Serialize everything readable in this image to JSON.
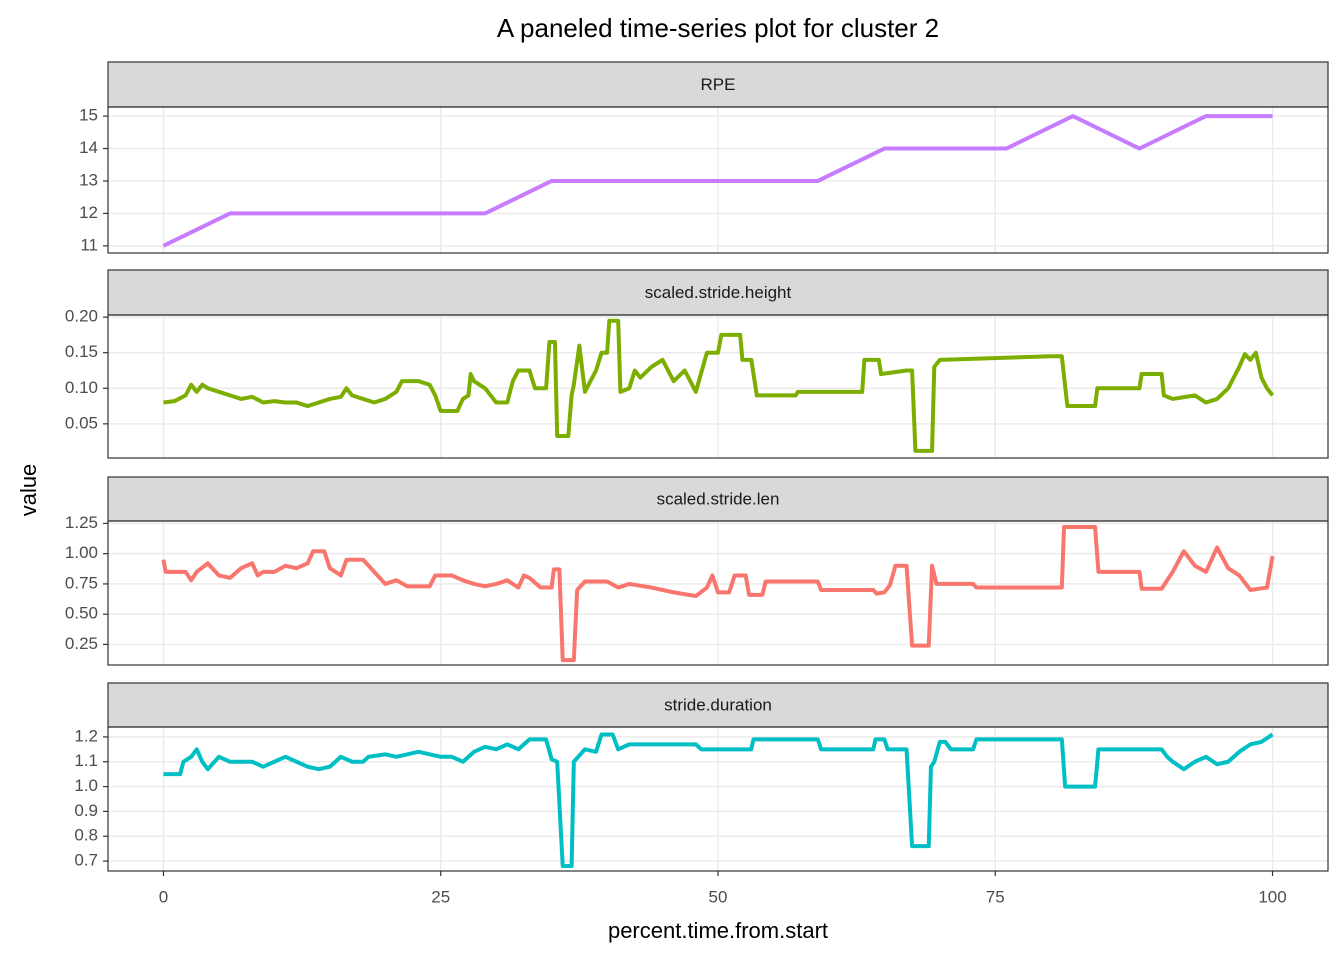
{
  "title": "A paneled time-series plot for cluster 2",
  "x_label": "percent.time.from.start",
  "y_label": "value",
  "xlim": [
    -5,
    105
  ],
  "xticks": [
    0,
    25,
    50,
    75,
    100
  ],
  "grid": true,
  "chart_data": [
    {
      "type": "line",
      "facet": "RPE",
      "color": "#C77CFF",
      "x": [
        0,
        6,
        29,
        35,
        59,
        65,
        76,
        82,
        88,
        94,
        100
      ],
      "values": [
        11,
        12,
        12,
        13,
        13,
        14,
        14,
        15,
        14,
        15,
        15
      ],
      "ylim": [
        10.78,
        15.28
      ],
      "yticks": [
        11,
        12,
        13,
        14,
        15
      ]
    },
    {
      "type": "line",
      "facet": "scaled.stride.height",
      "color": "#7CAE00",
      "x": [
        0,
        1,
        2,
        2.5,
        3,
        3.5,
        4,
        5,
        6,
        7,
        8,
        9,
        10,
        11,
        12,
        13,
        14,
        15,
        16,
        16.5,
        17,
        18,
        19,
        20,
        21,
        21.5,
        23,
        24,
        24.5,
        25,
        26.5,
        27,
        27.5,
        27.7,
        28,
        29,
        30,
        31,
        31.5,
        32,
        33,
        33.5,
        34.5,
        34.8,
        35.3,
        35.5,
        36.5,
        36.8,
        37,
        37.5,
        38,
        39,
        39.5,
        40,
        40.2,
        41,
        41.2,
        42,
        42.5,
        43,
        44,
        45,
        45.5,
        46,
        47,
        48,
        49,
        50,
        50.3,
        52,
        52.2,
        53,
        53.5,
        57,
        57.2,
        63,
        63.2,
        64.5,
        64.7,
        67,
        67.5,
        67.8,
        69.3,
        69.5,
        70,
        80,
        81,
        81.5,
        84,
        84.2,
        88,
        88.2,
        90,
        90.2,
        91,
        93,
        94,
        95,
        96,
        97,
        97.5,
        98,
        98.5,
        99,
        99.5,
        100
      ],
      "values": [
        0.08,
        0.082,
        0.09,
        0.105,
        0.095,
        0.105,
        0.1,
        0.095,
        0.09,
        0.085,
        0.088,
        0.08,
        0.082,
        0.08,
        0.08,
        0.075,
        0.08,
        0.085,
        0.088,
        0.1,
        0.09,
        0.085,
        0.08,
        0.085,
        0.095,
        0.11,
        0.11,
        0.105,
        0.09,
        0.068,
        0.068,
        0.085,
        0.09,
        0.12,
        0.11,
        0.1,
        0.08,
        0.08,
        0.11,
        0.125,
        0.125,
        0.1,
        0.1,
        0.165,
        0.165,
        0.033,
        0.033,
        0.09,
        0.105,
        0.16,
        0.095,
        0.125,
        0.15,
        0.15,
        0.195,
        0.195,
        0.095,
        0.1,
        0.125,
        0.115,
        0.13,
        0.14,
        0.125,
        0.11,
        0.125,
        0.095,
        0.15,
        0.15,
        0.175,
        0.175,
        0.14,
        0.14,
        0.09,
        0.09,
        0.095,
        0.095,
        0.14,
        0.14,
        0.12,
        0.125,
        0.125,
        0.012,
        0.012,
        0.13,
        0.14,
        0.145,
        0.145,
        0.075,
        0.075,
        0.1,
        0.1,
        0.12,
        0.12,
        0.09,
        0.085,
        0.09,
        0.08,
        0.085,
        0.1,
        0.13,
        0.148,
        0.14,
        0.15,
        0.115,
        0.1,
        0.09
      ],
      "ylim": [
        0.002,
        0.203
      ],
      "yticks": [
        0.05,
        {
          "value": 0.1,
          "label": "0.10"
        },
        0.15,
        {
          "value": 0.2,
          "label": "0.20"
        }
      ]
    },
    {
      "type": "line",
      "facet": "scaled.stride.len",
      "color": "#F8766D",
      "x": [
        0,
        0.2,
        2,
        2.5,
        3,
        4,
        5,
        6,
        7,
        8,
        8.5,
        9,
        10,
        11,
        12,
        13,
        13.5,
        14.5,
        15,
        16,
        16.5,
        18,
        19,
        20,
        21,
        22,
        24,
        24.5,
        26,
        27,
        28,
        29,
        30,
        31,
        32,
        32.5,
        33,
        34,
        35,
        35.2,
        35.7,
        36,
        37,
        37.3,
        38,
        40,
        41,
        42,
        44,
        46,
        48,
        49,
        49.5,
        50,
        51,
        51.5,
        52.5,
        52.8,
        54,
        54.3,
        59,
        59.3,
        64,
        64.3,
        65,
        65.5,
        66,
        67,
        67.5,
        69,
        69.3,
        69.7,
        73,
        73.3,
        81,
        81.2,
        84,
        84.3,
        88,
        88.2,
        90,
        91,
        92,
        93,
        94,
        95,
        96,
        97,
        98,
        99.5,
        100
      ],
      "values": [
        0.95,
        0.85,
        0.85,
        0.78,
        0.85,
        0.92,
        0.82,
        0.8,
        0.88,
        0.92,
        0.82,
        0.85,
        0.85,
        0.9,
        0.88,
        0.92,
        1.02,
        1.02,
        0.88,
        0.82,
        0.95,
        0.95,
        0.85,
        0.75,
        0.78,
        0.73,
        0.73,
        0.82,
        0.82,
        0.78,
        0.75,
        0.73,
        0.75,
        0.78,
        0.72,
        0.82,
        0.8,
        0.72,
        0.72,
        0.87,
        0.87,
        0.12,
        0.12,
        0.7,
        0.77,
        0.77,
        0.72,
        0.75,
        0.72,
        0.68,
        0.65,
        0.72,
        0.82,
        0.68,
        0.68,
        0.82,
        0.82,
        0.66,
        0.66,
        0.77,
        0.77,
        0.7,
        0.7,
        0.67,
        0.68,
        0.74,
        0.9,
        0.9,
        0.24,
        0.24,
        0.9,
        0.75,
        0.75,
        0.72,
        0.72,
        1.22,
        1.22,
        0.85,
        0.85,
        0.71,
        0.71,
        0.85,
        1.02,
        0.9,
        0.85,
        1.05,
        0.88,
        0.82,
        0.7,
        0.72,
        0.98
      ],
      "ylim": [
        0.08,
        1.27
      ],
      "yticks": [
        0.25,
        {
          "value": 0.5,
          "label": "0.50"
        },
        0.75,
        {
          "value": 1,
          "label": "1.00"
        },
        1.25
      ]
    },
    {
      "type": "line",
      "facet": "stride.duration",
      "color": "#00BFC4",
      "x": [
        0,
        1.5,
        1.8,
        2.5,
        3,
        3.5,
        4,
        5,
        6,
        8,
        9,
        10,
        11,
        12,
        13,
        14,
        15,
        16,
        17,
        18,
        18.5,
        20,
        21,
        23,
        25,
        26,
        27,
        28,
        29,
        30,
        31,
        32,
        33,
        34.5,
        35,
        35.5,
        36,
        36.8,
        37,
        38,
        39,
        39.5,
        40.5,
        41,
        42,
        48,
        48.5,
        53,
        53.2,
        59,
        59.3,
        64,
        64.2,
        65,
        65.3,
        67,
        67.5,
        69,
        69.2,
        69.5,
        70,
        70.5,
        71,
        73,
        73.3,
        81,
        81.3,
        84,
        84.3,
        90,
        90.5,
        91,
        92,
        93,
        94,
        95,
        96,
        97,
        98,
        99,
        100
      ],
      "values": [
        1.05,
        1.05,
        1.1,
        1.12,
        1.15,
        1.1,
        1.07,
        1.12,
        1.1,
        1.1,
        1.08,
        1.1,
        1.12,
        1.1,
        1.08,
        1.07,
        1.08,
        1.12,
        1.1,
        1.1,
        1.12,
        1.13,
        1.12,
        1.14,
        1.12,
        1.12,
        1.1,
        1.14,
        1.16,
        1.15,
        1.17,
        1.15,
        1.19,
        1.19,
        1.11,
        1.1,
        0.68,
        0.68,
        1.1,
        1.15,
        1.14,
        1.21,
        1.21,
        1.15,
        1.17,
        1.17,
        1.15,
        1.15,
        1.19,
        1.19,
        1.15,
        1.15,
        1.19,
        1.19,
        1.15,
        1.15,
        0.76,
        0.76,
        1.08,
        1.1,
        1.18,
        1.18,
        1.15,
        1.15,
        1.19,
        1.19,
        1.0,
        1.0,
        1.15,
        1.15,
        1.12,
        1.1,
        1.07,
        1.1,
        1.12,
        1.09,
        1.1,
        1.14,
        1.17,
        1.18,
        1.21
      ],
      "ylim": [
        0.66,
        1.24
      ],
      "yticks": [
        0.7,
        0.8,
        0.9,
        {
          "value": 1,
          "label": "1.0"
        },
        1.1,
        1.2
      ]
    }
  ]
}
